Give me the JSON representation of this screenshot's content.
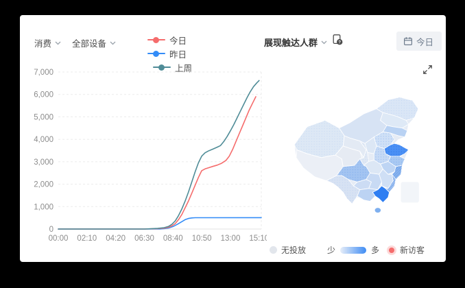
{
  "header": {
    "metric_dropdown": {
      "label": "消费"
    },
    "device_dropdown": {
      "label": "全部设备"
    },
    "legend": [
      {
        "label": "今日",
        "color": "#f56c6c"
      },
      {
        "label": "昨日",
        "color": "#338cf7"
      },
      {
        "label": "上周",
        "color": "#4f8c97"
      }
    ],
    "reach_dropdown": {
      "label": "展现触达人群"
    },
    "today_button": {
      "label": "今日"
    }
  },
  "chart_data": {
    "type": "line",
    "title": "",
    "xlabel": "",
    "ylabel": "",
    "grid": true,
    "legend_position": "top",
    "x_tick_labels": [
      "00:00",
      "02:10",
      "04:20",
      "06:30",
      "08:40",
      "10:50",
      "13:00",
      "15:10"
    ],
    "x_tick_minutes": [
      0,
      130,
      260,
      390,
      520,
      650,
      780,
      910
    ],
    "x_range_minutes": [
      0,
      920
    ],
    "ylim": [
      0,
      7000
    ],
    "y_ticks": [
      0,
      1000,
      2000,
      3000,
      4000,
      5000,
      6000,
      7000
    ],
    "y_tick_labels": [
      "0",
      "1,000",
      "2,000",
      "3,000",
      "4,000",
      "5,000",
      "6,000",
      "7,000"
    ],
    "series": [
      {
        "name": "昨日",
        "color": "#338cf7",
        "points": [
          [
            0,
            0
          ],
          [
            460,
            0
          ],
          [
            480,
            15
          ],
          [
            500,
            45
          ],
          [
            520,
            110
          ],
          [
            540,
            210
          ],
          [
            560,
            330
          ],
          [
            575,
            420
          ],
          [
            590,
            470
          ],
          [
            605,
            495
          ],
          [
            620,
            505
          ],
          [
            920,
            508
          ]
        ]
      },
      {
        "name": "今日",
        "color": "#f56c6c",
        "points": [
          [
            0,
            0
          ],
          [
            390,
            0
          ],
          [
            420,
            8
          ],
          [
            450,
            18
          ],
          [
            480,
            40
          ],
          [
            500,
            80
          ],
          [
            515,
            140
          ],
          [
            530,
            240
          ],
          [
            545,
            420
          ],
          [
            560,
            650
          ],
          [
            575,
            950
          ],
          [
            590,
            1250
          ],
          [
            605,
            1600
          ],
          [
            620,
            1950
          ],
          [
            635,
            2300
          ],
          [
            650,
            2600
          ],
          [
            665,
            2680
          ],
          [
            680,
            2730
          ],
          [
            700,
            2790
          ],
          [
            720,
            2850
          ],
          [
            740,
            2930
          ],
          [
            760,
            3060
          ],
          [
            775,
            3250
          ],
          [
            790,
            3550
          ],
          [
            805,
            3900
          ],
          [
            820,
            4250
          ],
          [
            835,
            4600
          ],
          [
            850,
            4950
          ],
          [
            865,
            5300
          ],
          [
            880,
            5600
          ],
          [
            895,
            5900
          ]
        ]
      },
      {
        "name": "上周",
        "color": "#4f8c97",
        "points": [
          [
            0,
            0
          ],
          [
            390,
            0
          ],
          [
            420,
            12
          ],
          [
            450,
            28
          ],
          [
            480,
            60
          ],
          [
            500,
            120
          ],
          [
            515,
            210
          ],
          [
            530,
            360
          ],
          [
            545,
            600
          ],
          [
            560,
            900
          ],
          [
            575,
            1250
          ],
          [
            590,
            1650
          ],
          [
            605,
            2100
          ],
          [
            620,
            2550
          ],
          [
            635,
            2950
          ],
          [
            650,
            3250
          ],
          [
            665,
            3400
          ],
          [
            680,
            3480
          ],
          [
            700,
            3560
          ],
          [
            720,
            3650
          ],
          [
            735,
            3720
          ],
          [
            750,
            3900
          ],
          [
            765,
            4120
          ],
          [
            780,
            4380
          ],
          [
            795,
            4650
          ],
          [
            810,
            4950
          ],
          [
            825,
            5250
          ],
          [
            840,
            5550
          ],
          [
            855,
            5850
          ],
          [
            870,
            6120
          ],
          [
            885,
            6350
          ],
          [
            900,
            6520
          ],
          [
            910,
            6620
          ]
        ]
      }
    ]
  },
  "map": {
    "legend": {
      "no_delivery": "无投放",
      "no_delivery_color": "#e2e6ec",
      "less": "少",
      "more": "多",
      "new_visitors": "新访客",
      "new_visitors_color": "#f56c6c"
    },
    "scale_colors": [
      "#e7eef8",
      "#3f8cf4"
    ],
    "highlight_color": "#2e7ef2"
  }
}
